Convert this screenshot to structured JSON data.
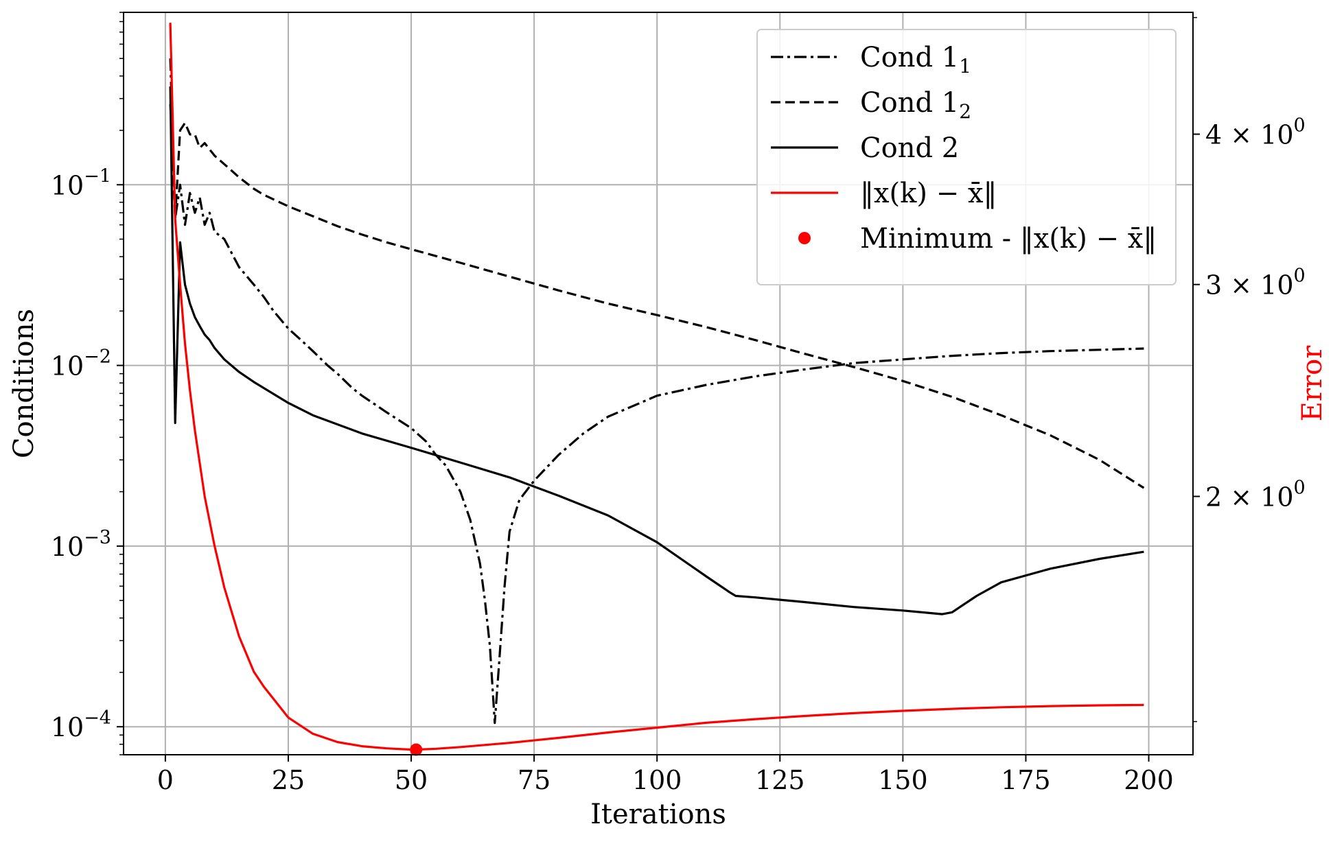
{
  "chart_data": {
    "type": "line",
    "xlabel": "Iterations",
    "ylabel_left": "Conditions",
    "ylabel_right": "Error",
    "xlim": [
      -8.5,
      209
    ],
    "ylim_left": [
      7e-05,
      0.9
    ],
    "yscale_left": "log",
    "ylim_right": [
      1.22,
      5.05
    ],
    "yscale_right": "log",
    "grid": true,
    "legend_position": "top-right",
    "x_ticks": [
      0,
      25,
      50,
      75,
      100,
      125,
      150,
      175,
      200
    ],
    "x_tick_labels": [
      "0",
      "25",
      "50",
      "75",
      "100",
      "125",
      "150",
      "175",
      "200"
    ],
    "y_left_ticks": [
      0.1,
      0.01,
      0.001,
      0.0001
    ],
    "y_left_tick_labels": [
      {
        "base": "10",
        "exp": "−1"
      },
      {
        "base": "10",
        "exp": "−2"
      },
      {
        "base": "10",
        "exp": "−3"
      },
      {
        "base": "10",
        "exp": "−4"
      }
    ],
    "y_right_ticks": [
      4,
      3,
      2
    ],
    "y_right_tick_labels": [
      {
        "mant": "4",
        "base": "10",
        "exp": "0"
      },
      {
        "mant": "3",
        "base": "10",
        "exp": "0"
      },
      {
        "mant": "2",
        "base": "10",
        "exp": "0"
      }
    ],
    "series": [
      {
        "name": "Cond 1",
        "name_sub": "1",
        "axis": "left",
        "color": "#000000",
        "style": "dashdot",
        "x": [
          1,
          2,
          3,
          4,
          5,
          6,
          7,
          8,
          9,
          10,
          12,
          15,
          18,
          20,
          22,
          25,
          28,
          30,
          33,
          35,
          38,
          40,
          45,
          50,
          53,
          55,
          57,
          60,
          62,
          64,
          65,
          66,
          67,
          68,
          69,
          70,
          72,
          75,
          80,
          85,
          90,
          100,
          110,
          120,
          130,
          140,
          150,
          160,
          170,
          180,
          190,
          199
        ],
        "y": [
          0.5,
          0.065,
          0.1,
          0.06,
          0.09,
          0.07,
          0.085,
          0.06,
          0.07,
          0.055,
          0.05,
          0.035,
          0.028,
          0.024,
          0.02,
          0.016,
          0.0135,
          0.012,
          0.01,
          0.009,
          0.0075,
          0.0068,
          0.0055,
          0.0045,
          0.0038,
          0.0032,
          0.0028,
          0.002,
          0.0014,
          0.0008,
          0.0005,
          0.00028,
          0.000105,
          0.00025,
          0.0006,
          0.0012,
          0.0018,
          0.0023,
          0.0032,
          0.0042,
          0.0052,
          0.0068,
          0.0078,
          0.0087,
          0.0095,
          0.0103,
          0.0108,
          0.0113,
          0.0117,
          0.012,
          0.0122,
          0.0124
        ]
      },
      {
        "name": "Cond 1",
        "name_sub": "2",
        "axis": "left",
        "color": "#000000",
        "style": "dashed",
        "x": [
          1,
          2,
          3,
          4,
          5,
          6,
          7,
          8,
          10,
          12,
          15,
          18,
          20,
          25,
          30,
          35,
          40,
          45,
          50,
          60,
          70,
          80,
          90,
          100,
          110,
          120,
          130,
          140,
          150,
          160,
          170,
          180,
          190,
          199
        ],
        "y": [
          0.28,
          0.065,
          0.2,
          0.22,
          0.19,
          0.19,
          0.16,
          0.17,
          0.145,
          0.13,
          0.11,
          0.095,
          0.088,
          0.076,
          0.067,
          0.059,
          0.053,
          0.048,
          0.044,
          0.037,
          0.031,
          0.026,
          0.022,
          0.019,
          0.0163,
          0.0138,
          0.0116,
          0.0098,
          0.0082,
          0.0067,
          0.0053,
          0.0041,
          0.003,
          0.0021
        ]
      },
      {
        "name": "Cond 2",
        "axis": "left",
        "color": "#000000",
        "style": "solid",
        "x": [
          1,
          2,
          3,
          4,
          5,
          6,
          7,
          8,
          9,
          10,
          12,
          15,
          18,
          20,
          25,
          30,
          40,
          50,
          60,
          70,
          80,
          90,
          100,
          110,
          115,
          116,
          120,
          130,
          140,
          150,
          158,
          160,
          165,
          170,
          180,
          190,
          199
        ],
        "y": [
          0.35,
          0.0048,
          0.048,
          0.028,
          0.022,
          0.0185,
          0.0165,
          0.0148,
          0.0138,
          0.0125,
          0.0108,
          0.0092,
          0.0081,
          0.0075,
          0.0062,
          0.0053,
          0.0042,
          0.0035,
          0.0029,
          0.0024,
          0.0019,
          0.00148,
          0.00105,
          0.00068,
          0.00055,
          0.00053,
          0.00052,
          0.00049,
          0.00046,
          0.00044,
          0.00042,
          0.00043,
          0.00053,
          0.00063,
          0.00075,
          0.00085,
          0.00093
        ]
      },
      {
        "name": "‖x(k) − x̄‖",
        "axis": "right",
        "color": "#ff0000",
        "style": "solid",
        "x": [
          1,
          2,
          3,
          4,
          5,
          6,
          8,
          10,
          12,
          15,
          18,
          20,
          25,
          30,
          35,
          40,
          45,
          50,
          51,
          55,
          60,
          70,
          80,
          90,
          100,
          110,
          120,
          130,
          140,
          150,
          160,
          170,
          180,
          190,
          199
        ],
        "y": [
          4.95,
          3.4,
          3.0,
          2.68,
          2.45,
          2.27,
          2.0,
          1.82,
          1.68,
          1.53,
          1.43,
          1.39,
          1.31,
          1.27,
          1.25,
          1.24,
          1.235,
          1.232,
          1.232,
          1.234,
          1.238,
          1.248,
          1.26,
          1.273,
          1.285,
          1.297,
          1.306,
          1.314,
          1.321,
          1.327,
          1.332,
          1.336,
          1.339,
          1.341,
          1.342
        ]
      }
    ],
    "points": [
      {
        "name": "Minimum - ‖x(k) − x̄‖",
        "axis": "right",
        "color": "#ff0000",
        "x": 51,
        "y": 1.232
      }
    ]
  },
  "legend": {
    "items": [
      {
        "label": "Cond 1",
        "sub": "1"
      },
      {
        "label": "Cond 1",
        "sub": "2"
      },
      {
        "label": "Cond 2",
        "sub": ""
      },
      {
        "label": "‖x(k) − x̄‖",
        "sub": ""
      },
      {
        "label": "Minimum - ‖x(k) − x̄‖",
        "sub": ""
      }
    ]
  }
}
